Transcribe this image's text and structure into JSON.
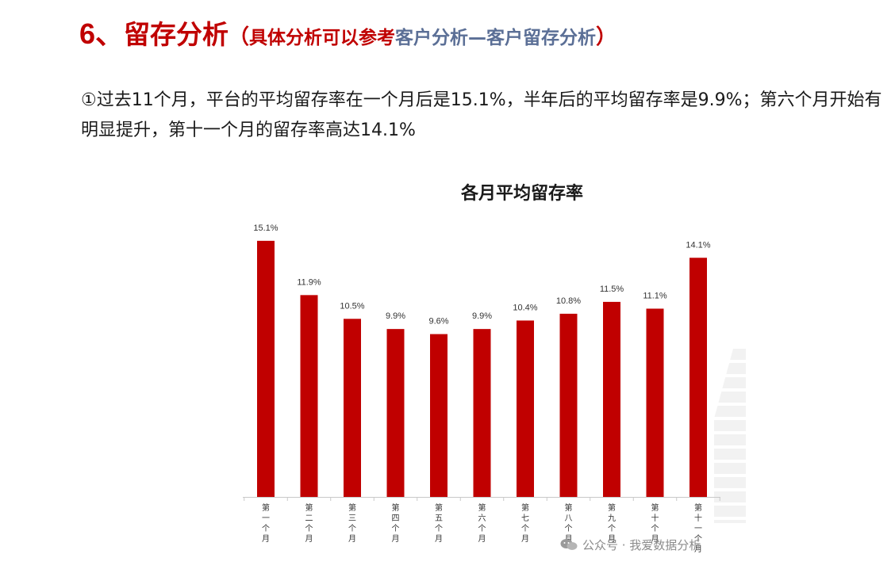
{
  "heading": {
    "number": "6、",
    "title": "留存分析",
    "open_paren": "（",
    "ref_text": "具体分析可以参考",
    "ref_link": "客户分析—客户留存分析",
    "close_paren": "）"
  },
  "paragraph": "①过去11个月，平台的平均留存率在一个月后是15.1%，半年后的平均留存率是9.9%；第六个月开始有明显提升，第十一个月的留存率高达14.1%",
  "watermark": {
    "icon": "wechat-icon",
    "text": "公众号 · 我爱数据分析"
  },
  "colors": {
    "accent": "#c00000",
    "link": "#5b6f96",
    "bar": "#c00000"
  },
  "chart_data": {
    "type": "bar",
    "title": "各月平均留存率",
    "xlabel": "",
    "ylabel": "",
    "ylim": [
      0,
      16
    ],
    "grid": false,
    "legend": "none",
    "categories": [
      "第一个月",
      "第二个月",
      "第三个月",
      "第四个月",
      "第五个月",
      "第六个月",
      "第七个月",
      "第八个月",
      "第九个月",
      "第十个月",
      "第十一个月"
    ],
    "values": [
      15.1,
      11.9,
      10.5,
      9.9,
      9.6,
      9.9,
      10.4,
      10.8,
      11.5,
      11.1,
      14.1
    ],
    "value_labels": [
      "15.1%",
      "11.9%",
      "10.5%",
      "9.9%",
      "9.6%",
      "9.9%",
      "10.4%",
      "10.8%",
      "11.5%",
      "11.1%",
      "14.1%"
    ]
  }
}
